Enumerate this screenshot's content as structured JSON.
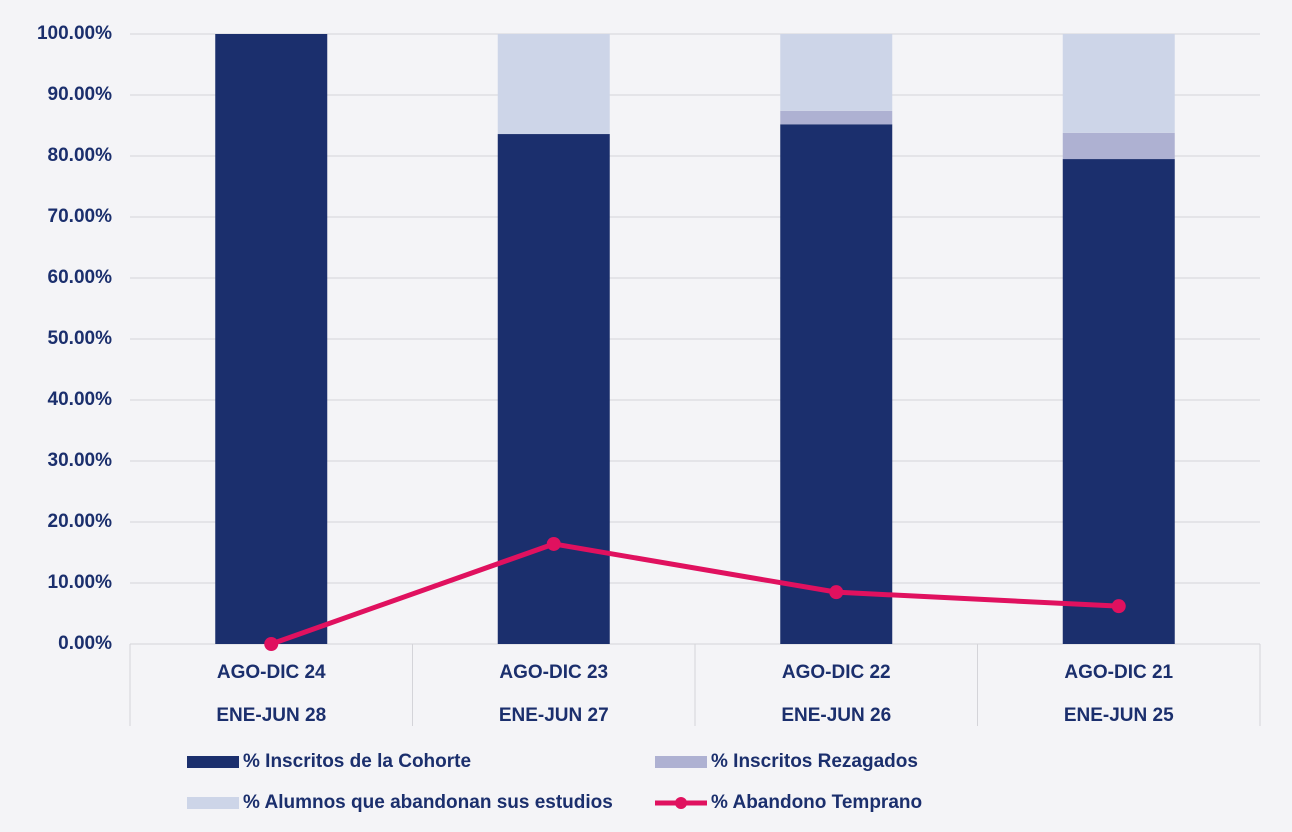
{
  "chart_data": {
    "type": "stacked-bar-line",
    "categories": [
      "AGO-DIC 24",
      "AGO-DIC 23",
      "AGO-DIC 22",
      "AGO-DIC 21"
    ],
    "categories2": [
      "ENE-JUN 28",
      "ENE-JUN 27",
      "ENE-JUN 26",
      "ENE-JUN 25"
    ],
    "series": [
      {
        "name": "% Inscritos de la Cohorte",
        "color": "#1b2f6d",
        "type": "bar",
        "values": [
          100,
          83.6,
          85.2,
          79.5
        ]
      },
      {
        "name": "% Inscritos Rezagados",
        "color": "#aeb1d2",
        "type": "bar",
        "values": [
          0,
          0,
          2.2,
          4.3
        ]
      },
      {
        "name": "% Alumnos que abandonan sus estudios",
        "color": "#cdd5e8",
        "type": "bar",
        "values": [
          0,
          16.4,
          12.6,
          16.2
        ]
      },
      {
        "name": "% Abandono Temprano",
        "color": "#e0115f",
        "type": "line",
        "values": [
          0,
          16.4,
          8.5,
          6.2
        ]
      }
    ],
    "ylim": [
      0,
      100
    ],
    "yticks": [
      {
        "value": 0,
        "label": "0.00%"
      },
      {
        "value": 10,
        "label": "10.00%"
      },
      {
        "value": 20,
        "label": "20.00%"
      },
      {
        "value": 30,
        "label": "30.00%"
      },
      {
        "value": 40,
        "label": "40.00%"
      },
      {
        "value": 50,
        "label": "50.00%"
      },
      {
        "value": 60,
        "label": "60.00%"
      },
      {
        "value": 70,
        "label": "70.00%"
      },
      {
        "value": 80,
        "label": "80.00%"
      },
      {
        "value": 90,
        "label": "90.00%"
      },
      {
        "value": 100,
        "label": "100.00%"
      }
    ],
    "grid": true,
    "legend": "bottom"
  }
}
